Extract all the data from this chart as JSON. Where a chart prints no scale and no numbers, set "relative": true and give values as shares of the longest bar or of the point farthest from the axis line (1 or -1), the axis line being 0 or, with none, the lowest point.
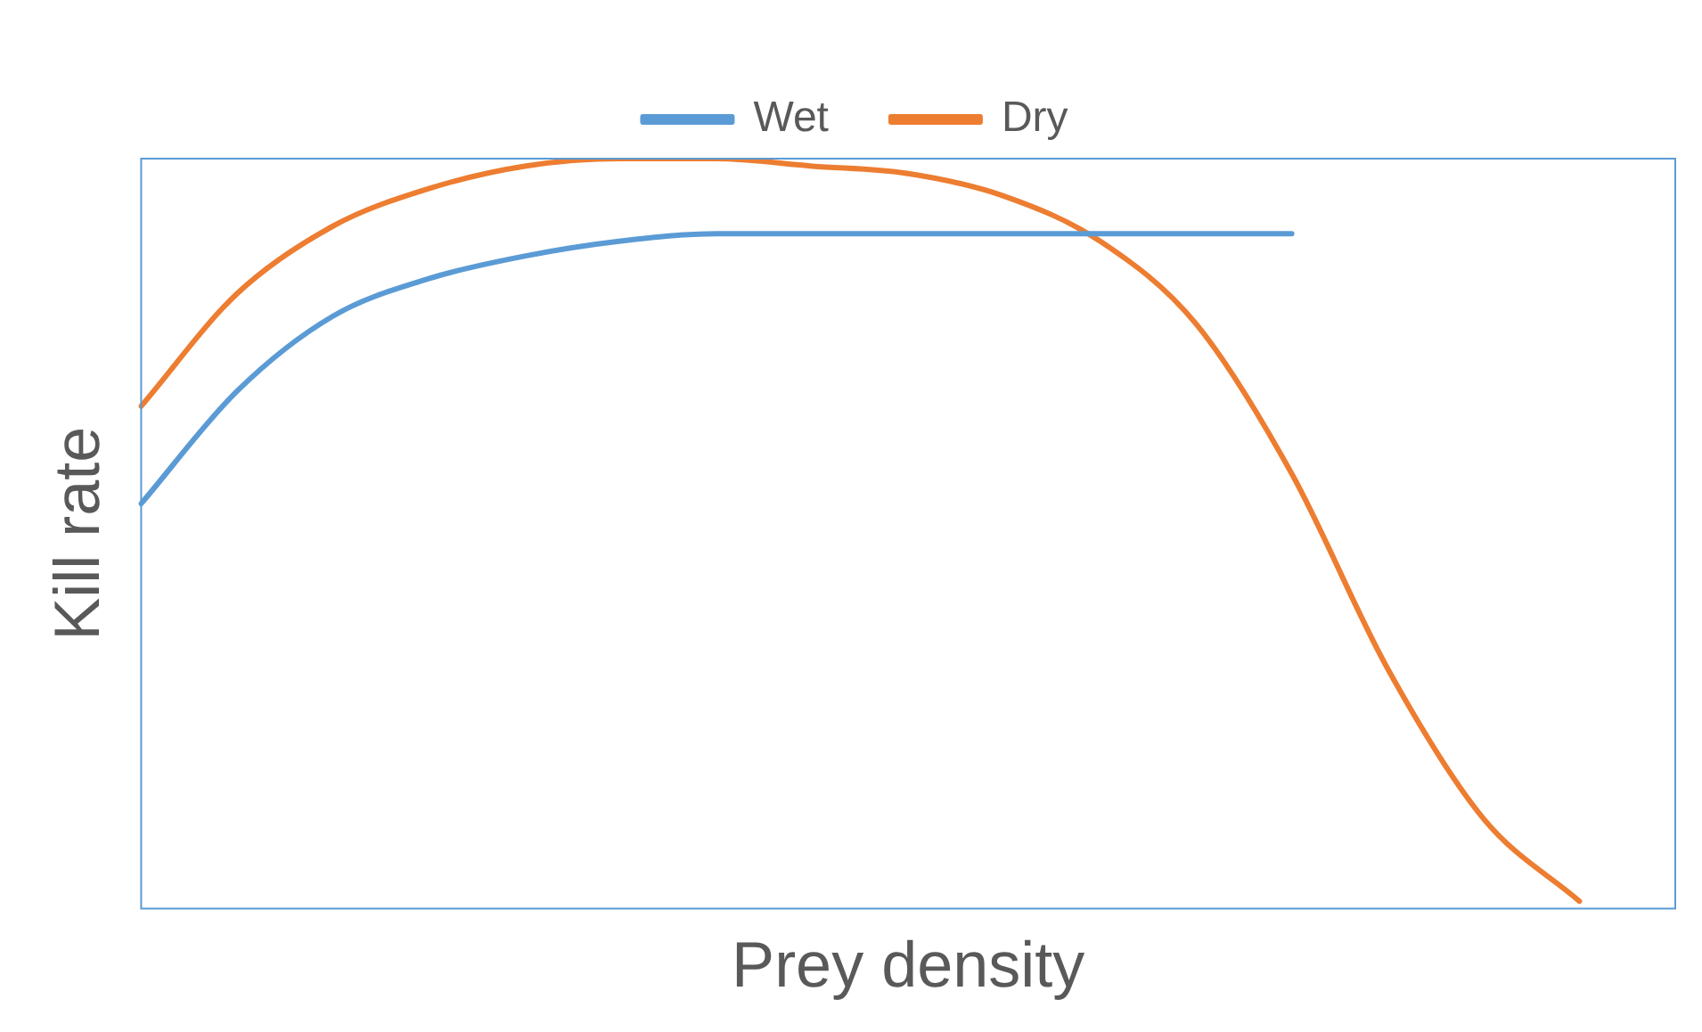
{
  "chart_data": {
    "type": "line",
    "xlabel": "Prey density",
    "ylabel": "Kill rate",
    "relative": true,
    "legend": "top",
    "grid": false,
    "marker": "none",
    "line_style": "solid",
    "categories": [
      null,
      null,
      null,
      null,
      null,
      null,
      null,
      null,
      null,
      null,
      null,
      null,
      null,
      null,
      null,
      null,
      null
    ],
    "series": [
      {
        "name": "Wet",
        "color": "#5b9bd5",
        "values": [
          0.54,
          0.69,
          0.79,
          0.84,
          0.87,
          0.89,
          0.9,
          0.9,
          0.9,
          0.9,
          0.9,
          0.9,
          0.9,
          null,
          null,
          null,
          null
        ]
      },
      {
        "name": "Dry",
        "color": "#ed7d31",
        "values": [
          0.67,
          0.82,
          0.91,
          0.96,
          0.99,
          1,
          1,
          0.99,
          0.98,
          0.95,
          0.89,
          0.78,
          0.58,
          0.32,
          0.12,
          0.01,
          null
        ]
      }
    ]
  }
}
